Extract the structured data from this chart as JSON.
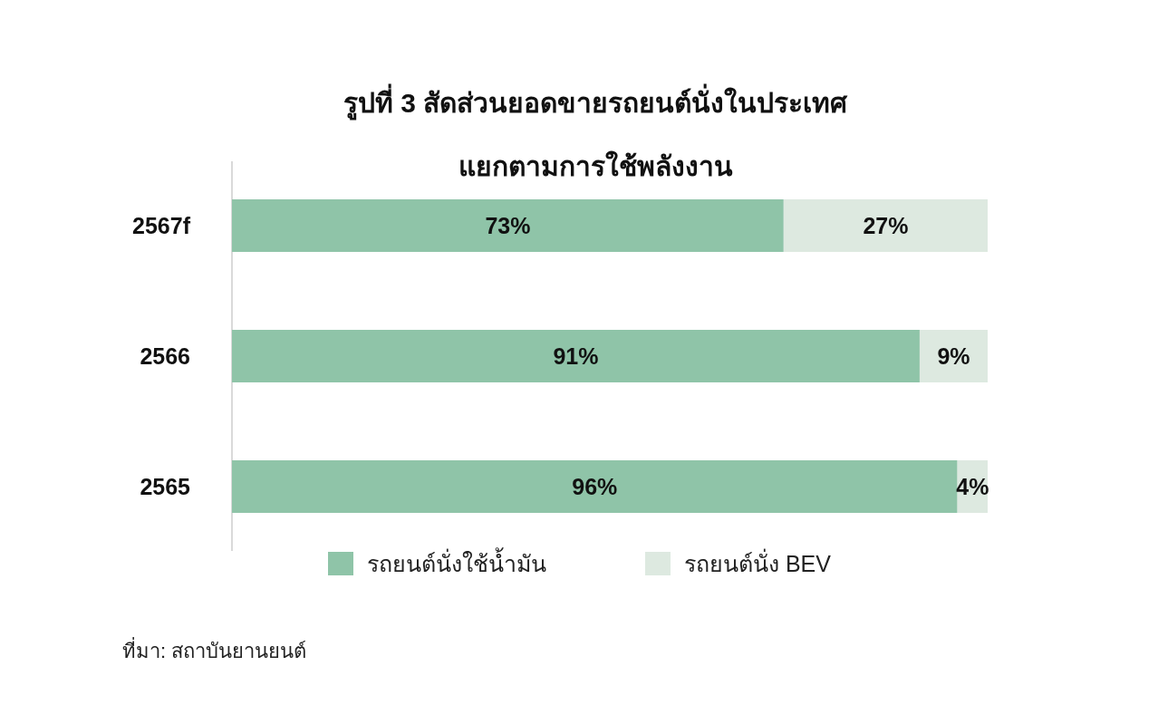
{
  "chart_data": {
    "type": "bar",
    "orientation": "horizontal",
    "stacked": true,
    "title": "รูปที่ 3 สัดส่วนยอดขายรถยนต์นั่งในประเทศ",
    "subtitle": "แยกตามการใช้พลังงาน",
    "categories": [
      "2567f",
      "2566",
      "2565"
    ],
    "series": [
      {
        "name": "รถยนต์นั่งใช้น้ำมัน",
        "color": "#8fc4a8",
        "values": [
          73,
          91,
          96
        ],
        "value_labels": [
          "73%",
          "91%",
          "96%"
        ]
      },
      {
        "name": "รถยนต์นั่ง BEV",
        "color": "#dde9e0",
        "values": [
          27,
          9,
          4
        ],
        "value_labels": [
          "27%",
          "9%",
          "4%"
        ]
      }
    ],
    "legend": "bottom",
    "annotations": [
      "ที่มา: สถาบันยานยนต์"
    ]
  }
}
